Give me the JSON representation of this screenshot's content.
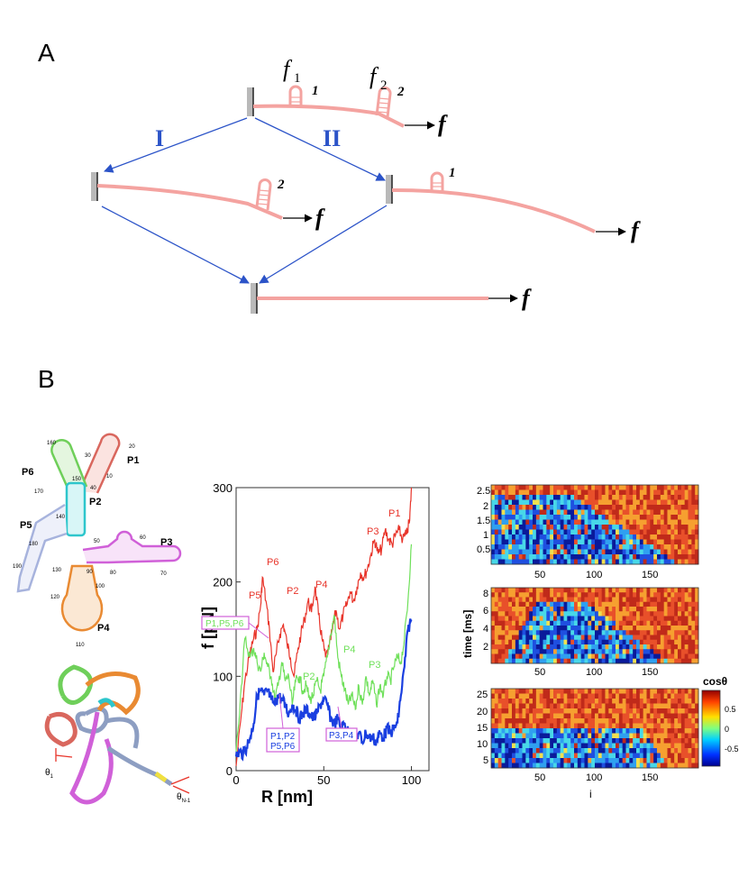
{
  "panel_a": {
    "letter": "A",
    "f1_main": "f",
    "f1_sub": "1",
    "f2_main": "f",
    "f2_sub": "2",
    "hairpin_1": "1",
    "hairpin_2": "2",
    "path_I": "I",
    "path_II": "II",
    "force": "f",
    "colors": {
      "arrow": "#2b53c8",
      "rna": "#f4a3a0",
      "wall": "#b9b9b9"
    }
  },
  "panel_b": {
    "letter": "B",
    "secondary_structure": {
      "helices": [
        "P1",
        "P2",
        "P3",
        "P4",
        "P5",
        "P6"
      ],
      "numbers": [
        "10",
        "20",
        "30",
        "40",
        "50",
        "60",
        "70",
        "80",
        "90",
        "100",
        "110",
        "120",
        "130",
        "140",
        "150",
        "160",
        "170",
        "180",
        "190"
      ],
      "colors": {
        "P1": "#d9675e",
        "P2": "#2ec6cc",
        "P3": "#d060d8",
        "P4": "#e98a32",
        "P5": "#a7b3dd",
        "P6": "#6fcf5a"
      }
    },
    "tertiary_structure": {
      "theta_1": "θ",
      "theta_1_sub": "1",
      "theta_n": "θ",
      "theta_n_sub": "N-1"
    },
    "chart_data": {
      "type": "line",
      "xlabel": "R [nm]",
      "ylabel": "f [pN]",
      "xlim": [
        0,
        110
      ],
      "ylim": [
        0,
        300
      ],
      "xticks": [
        0,
        50,
        100
      ],
      "yticks": [
        0,
        100,
        200,
        300
      ],
      "series": [
        {
          "color": "#e8342a",
          "x": [
            0,
            3,
            5,
            8,
            10,
            12,
            14,
            15,
            17,
            19,
            21,
            23,
            25,
            27,
            29,
            31,
            33,
            35,
            37,
            39,
            41,
            43,
            45,
            47,
            49,
            51,
            53,
            55,
            57,
            59,
            61,
            63,
            65,
            67,
            69,
            71,
            73,
            75,
            77,
            79,
            81,
            83,
            85,
            87,
            89,
            91,
            93,
            95,
            97,
            99,
            100
          ],
          "y": [
            5,
            60,
            95,
            125,
            140,
            150,
            175,
            205,
            180,
            150,
            105,
            125,
            145,
            155,
            135,
            120,
            100,
            125,
            145,
            160,
            180,
            168,
            195,
            165,
            140,
            120,
            130,
            150,
            170,
            150,
            165,
            175,
            190,
            180,
            195,
            210,
            205,
            215,
            230,
            245,
            230,
            235,
            255,
            245,
            240,
            250,
            255,
            245,
            250,
            265,
            300
          ]
        },
        {
          "color": "#6fe05a",
          "x": [
            0,
            3,
            5,
            8,
            10,
            12,
            14,
            16,
            18,
            20,
            22,
            24,
            26,
            28,
            30,
            32,
            34,
            36,
            38,
            40,
            42,
            44,
            46,
            48,
            50,
            52,
            54,
            56,
            58,
            60,
            62,
            64,
            66,
            68,
            70,
            72,
            74,
            76,
            78,
            80,
            82,
            84,
            86,
            88,
            90,
            92,
            94,
            96,
            98,
            100
          ],
          "y": [
            20,
            90,
            140,
            120,
            130,
            115,
            105,
            125,
            110,
            100,
            75,
            90,
            115,
            95,
            100,
            70,
            95,
            100,
            85,
            90,
            75,
            80,
            95,
            85,
            100,
            120,
            145,
            165,
            120,
            100,
            85,
            70,
            80,
            65,
            90,
            70,
            100,
            80,
            95,
            70,
            90,
            80,
            100,
            95,
            110,
            120,
            115,
            140,
            180,
            240
          ]
        },
        {
          "color": "#1a3fe0",
          "x": [
            0,
            2,
            4,
            6,
            8,
            10,
            12,
            14,
            16,
            18,
            20,
            22,
            24,
            26,
            28,
            30,
            32,
            34,
            36,
            38,
            40,
            42,
            44,
            46,
            48,
            50,
            52,
            54,
            56,
            58,
            60,
            62,
            64,
            66,
            68,
            70,
            72,
            74,
            76,
            78,
            80,
            82,
            84,
            86,
            88,
            90,
            92,
            94,
            96,
            98,
            100
          ],
          "y": [
            15,
            20,
            18,
            25,
            35,
            50,
            80,
            85,
            80,
            85,
            75,
            70,
            80,
            75,
            70,
            60,
            70,
            65,
            55,
            60,
            65,
            60,
            55,
            60,
            70,
            75,
            70,
            55,
            50,
            55,
            45,
            50,
            40,
            45,
            35,
            40,
            30,
            40,
            35,
            35,
            30,
            40,
            35,
            45,
            40,
            45,
            50,
            80,
            110,
            150,
            160
          ]
        }
      ],
      "peak_labels": {
        "red": [
          "P6",
          "P5",
          "P2",
          "P4",
          "P3",
          "P1"
        ],
        "green": [
          "P2",
          "P4",
          "P3"
        ]
      },
      "boxes": {
        "pink": "P1,P5,P6",
        "blue_line1": "P1,P2",
        "blue_line2": "P5,P6",
        "blue2": "P3,P4"
      }
    },
    "heatmaps": {
      "xlabel": "i",
      "ylabel": "time [ms]",
      "xticks": [
        "50",
        "100",
        "150"
      ],
      "panel1_yticks": [
        "0.5",
        "1",
        "1.5",
        "2",
        "2.5"
      ],
      "panel2_yticks": [
        "2",
        "4",
        "6",
        "8"
      ],
      "panel3_yticks": [
        "5",
        "10",
        "15",
        "20",
        "25"
      ],
      "colorbar_title": "cosθ",
      "colorbar_ticks": [
        "0.5",
        "0",
        "-0.5"
      ]
    }
  }
}
